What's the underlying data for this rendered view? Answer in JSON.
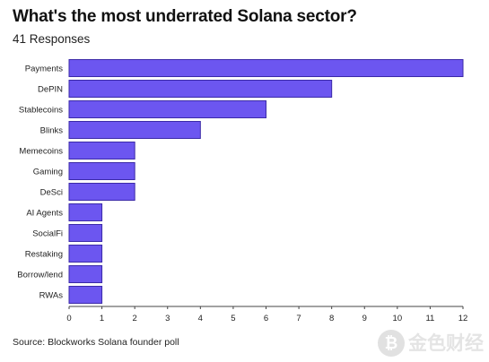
{
  "title": "What's the most underrated Solana sector?",
  "subtitle": "41 Responses",
  "source": "Source: Blockworks Solana founder poll",
  "watermark": {
    "icon": "bitcoin-coin-icon",
    "text": "金色财经"
  },
  "colors": {
    "bar": "#6c56f0",
    "bar_stroke": "#3b2aa8",
    "axis": "#444444",
    "text": "#222222"
  },
  "chart_data": {
    "type": "bar",
    "orientation": "horizontal",
    "categories": [
      "Payments",
      "DePIN",
      "Stablecoins",
      "Blinks",
      "Memecoins",
      "Gaming",
      "DeSci",
      "AI Agents",
      "SocialFi",
      "Restaking",
      "Borrow/lend",
      "RWAs"
    ],
    "values": [
      12,
      8,
      6,
      4,
      2,
      2,
      2,
      1,
      1,
      1,
      1,
      1
    ],
    "xlim": [
      0,
      12
    ],
    "xticks": [
      0,
      1,
      2,
      3,
      4,
      5,
      6,
      7,
      8,
      9,
      10,
      11,
      12
    ],
    "grid": false,
    "legend": "none"
  }
}
